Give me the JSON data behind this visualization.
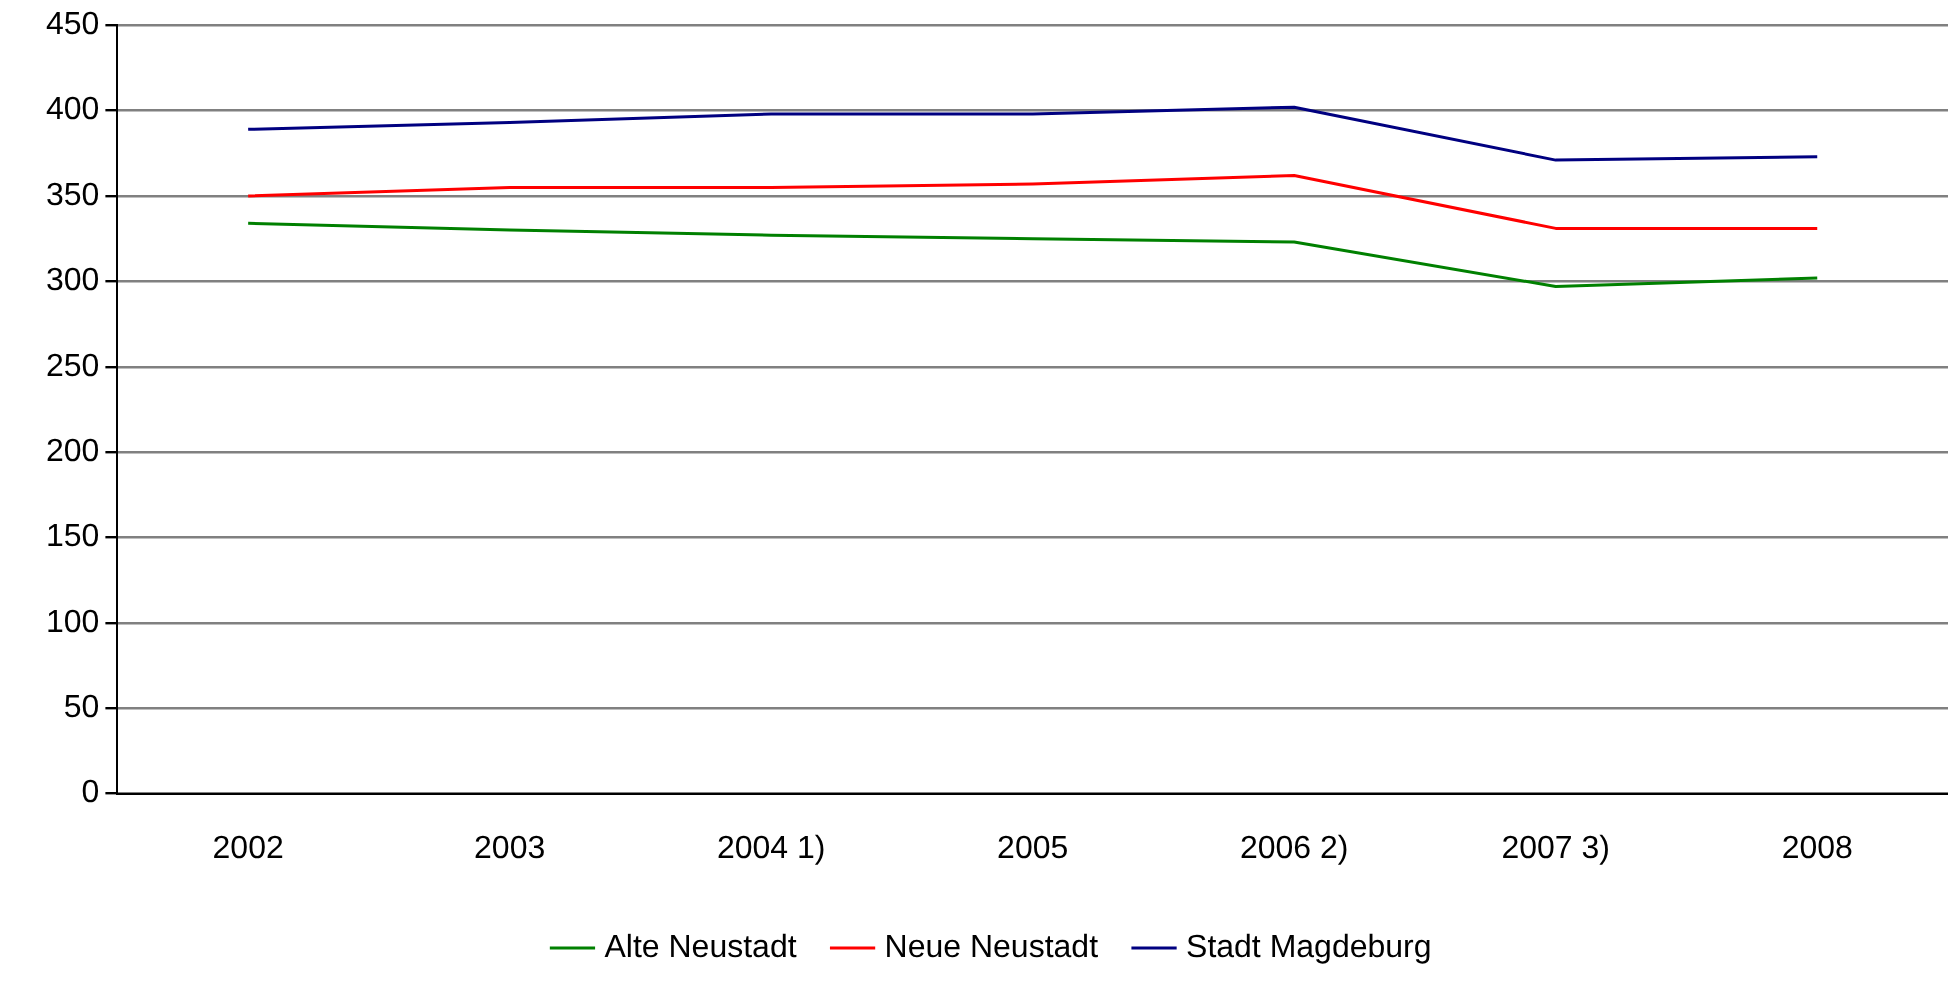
{
  "chart_data": {
    "type": "line",
    "categories": [
      "2002",
      "2003",
      "2004 1)",
      "2005",
      "2006 2)",
      "2007 3)",
      "2008"
    ],
    "series": [
      {
        "name": "Alte Neustadt",
        "color": "#008000",
        "values": [
          334,
          330,
          327,
          325,
          323,
          297,
          302
        ]
      },
      {
        "name": "Neue Neustadt",
        "color": "#ff0000",
        "values": [
          350,
          355,
          355,
          357,
          362,
          331,
          331
        ]
      },
      {
        "name": "Stadt Magdeburg",
        "color": "#000080",
        "values": [
          389,
          393,
          398,
          398,
          402,
          371,
          373
        ]
      }
    ],
    "ylim": [
      0,
      450
    ],
    "yticks": [
      0,
      50,
      100,
      150,
      200,
      250,
      300,
      350,
      400,
      450
    ],
    "grid": "y",
    "legend": "bottom",
    "marker": "none",
    "line_style": "solid"
  }
}
